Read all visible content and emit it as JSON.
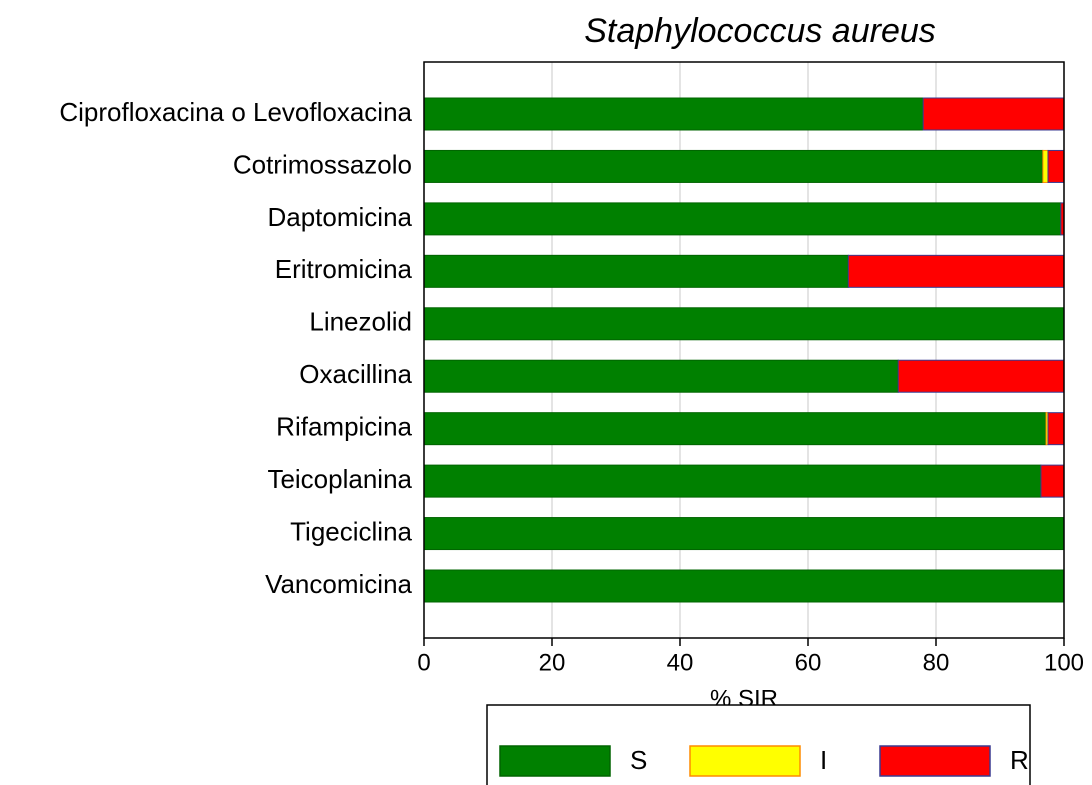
{
  "chart_data": {
    "type": "bar",
    "orientation": "horizontal",
    "stacked": true,
    "title": "Staphylococcus aureus",
    "xlabel": "% SIR",
    "categories": [
      "Ciprofloxacina o Levofloxacina",
      "Cotrimossazolo",
      "Daptomicina",
      "Eritromicina",
      "Linezolid",
      "Oxacillina",
      "Rifampicina",
      "Teicoplanina",
      "Tigeciclina",
      "Vancomicina"
    ],
    "series": [
      {
        "name": "S",
        "color": "#008000",
        "values": [
          78,
          96.7,
          99.5,
          66.3,
          100,
          74.1,
          97.2,
          96.4,
          100,
          100
        ]
      },
      {
        "name": "I",
        "color": "#ffff00",
        "values": [
          0,
          0.8,
          0,
          0,
          0,
          0,
          0.3,
          0,
          0,
          0
        ]
      },
      {
        "name": "R",
        "color": "#ff0000",
        "values": [
          22,
          2.5,
          0.5,
          33.7,
          0,
          25.9,
          2.5,
          3.6,
          0,
          0
        ]
      }
    ],
    "xlim": [
      0,
      100
    ],
    "xticks": [
      0,
      20,
      40,
      60,
      80,
      100
    ],
    "grid": true,
    "legend": "bottom"
  }
}
